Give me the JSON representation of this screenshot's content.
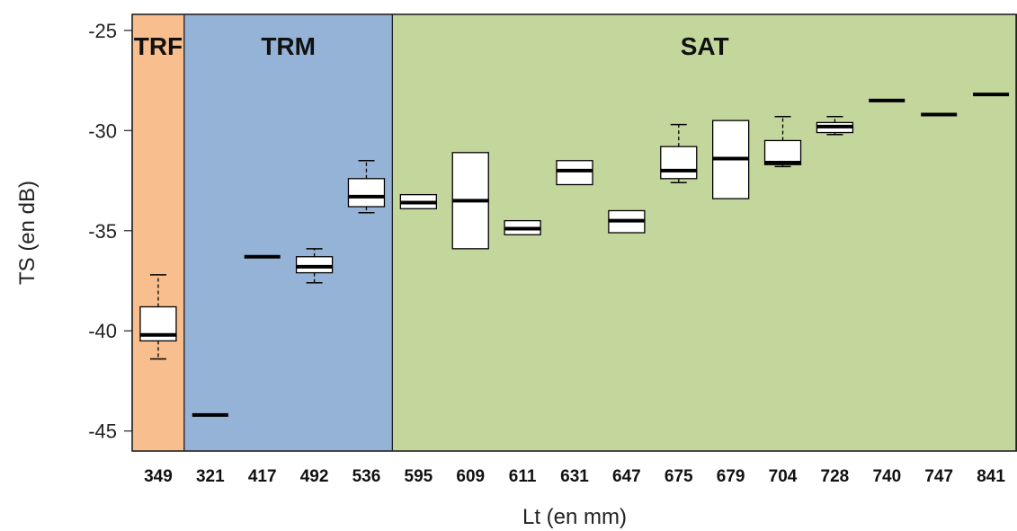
{
  "chart_data": {
    "type": "boxplot",
    "xlabel": "Lt (en mm)",
    "ylabel": "TS (en dB)",
    "ylim": [
      -46,
      -24.2
    ],
    "yticks": [
      -25,
      -30,
      -35,
      -40,
      -45
    ],
    "categories": [
      "349",
      "321",
      "417",
      "492",
      "536",
      "595",
      "609",
      "611",
      "631",
      "647",
      "675",
      "679",
      "704",
      "728",
      "740",
      "747",
      "841"
    ],
    "boxes": [
      {
        "label": "349",
        "min": -41.4,
        "q1": -40.5,
        "median": -40.2,
        "q3": -38.8,
        "max": -37.2
      },
      {
        "label": "321",
        "min": -44.2,
        "q1": -44.2,
        "median": -44.2,
        "q3": -44.2,
        "max": -44.2
      },
      {
        "label": "417",
        "min": -36.3,
        "q1": -36.3,
        "median": -36.3,
        "q3": -36.3,
        "max": -36.3
      },
      {
        "label": "492",
        "min": -37.6,
        "q1": -37.1,
        "median": -36.8,
        "q3": -36.3,
        "max": -35.9
      },
      {
        "label": "536",
        "min": -34.1,
        "q1": -33.8,
        "median": -33.3,
        "q3": -32.4,
        "max": -31.5
      },
      {
        "label": "595",
        "min": -33.9,
        "q1": -33.9,
        "median": -33.6,
        "q3": -33.2,
        "max": -33.2
      },
      {
        "label": "609",
        "min": -35.9,
        "q1": -35.9,
        "median": -33.5,
        "q3": -31.1,
        "max": -31.1
      },
      {
        "label": "611",
        "min": -35.2,
        "q1": -35.2,
        "median": -34.9,
        "q3": -34.5,
        "max": -34.5
      },
      {
        "label": "631",
        "min": -32.7,
        "q1": -32.7,
        "median": -32.0,
        "q3": -31.5,
        "max": -31.5
      },
      {
        "label": "647",
        "min": -35.1,
        "q1": -35.1,
        "median": -34.5,
        "q3": -34.0,
        "max": -34.0
      },
      {
        "label": "675",
        "min": -32.6,
        "q1": -32.4,
        "median": -32.0,
        "q3": -30.8,
        "max": -29.7
      },
      {
        "label": "679",
        "min": -33.4,
        "q1": -33.4,
        "median": -31.4,
        "q3": -29.5,
        "max": -29.5
      },
      {
        "label": "704",
        "min": -31.8,
        "q1": -31.7,
        "median": -31.6,
        "q3": -30.5,
        "max": -29.3
      },
      {
        "label": "728",
        "min": -30.2,
        "q1": -30.1,
        "median": -29.8,
        "q3": -29.6,
        "max": -29.3
      },
      {
        "label": "740",
        "min": -28.5,
        "q1": -28.5,
        "median": -28.5,
        "q3": -28.5,
        "max": -28.5
      },
      {
        "label": "747",
        "min": -29.2,
        "q1": -29.2,
        "median": -29.2,
        "q3": -29.2,
        "max": -29.2
      },
      {
        "label": "841",
        "min": -28.2,
        "q1": -28.2,
        "median": -28.2,
        "q3": -28.2,
        "max": -28.2
      }
    ],
    "regions": [
      {
        "label": "TRF",
        "from_index": 0,
        "to_index": 0,
        "color": "#f8be8e"
      },
      {
        "label": "TRM",
        "from_index": 1,
        "to_index": 4,
        "color": "#95b3d7"
      },
      {
        "label": "SAT",
        "from_index": 5,
        "to_index": 16,
        "color": "#c3d69b"
      }
    ]
  }
}
